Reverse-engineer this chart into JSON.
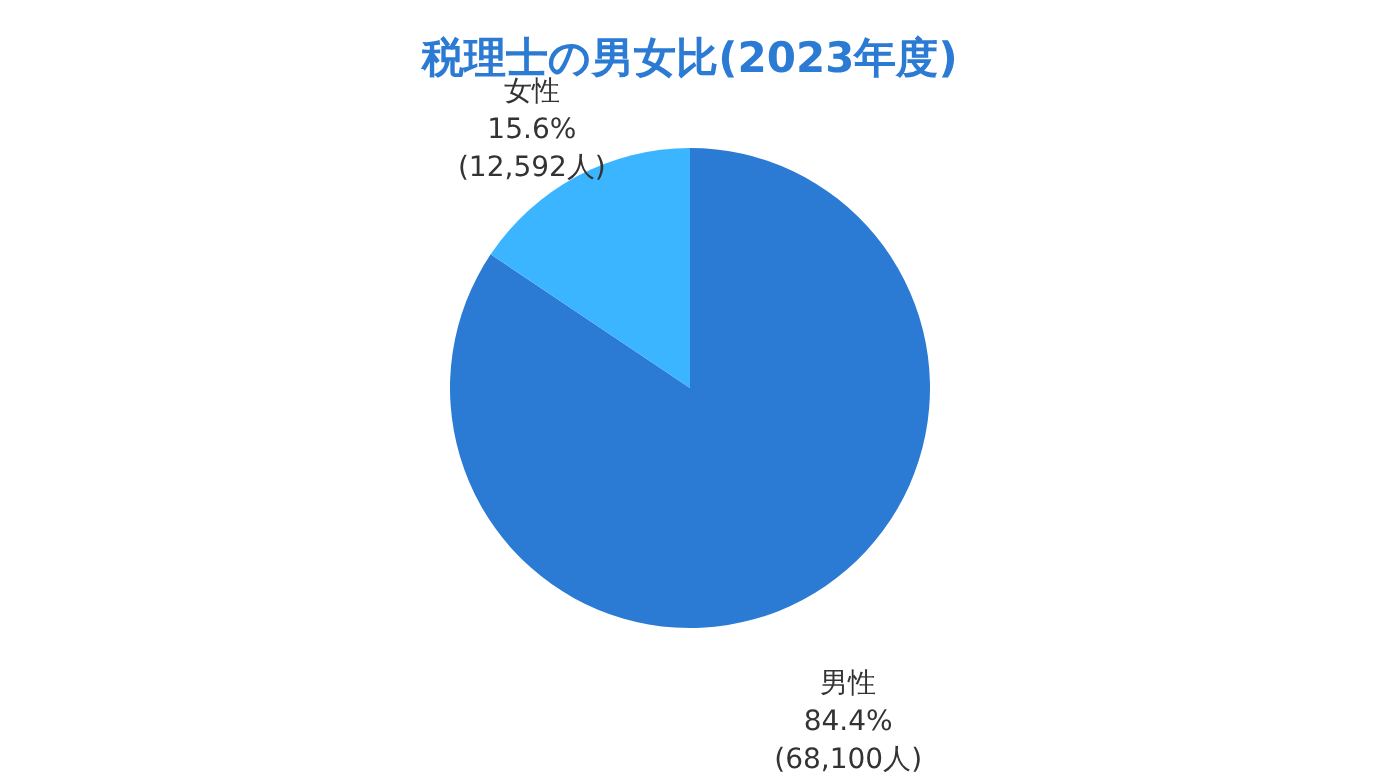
{
  "chart_data": {
    "type": "pie",
    "title": "税理士の男女比(2023年度)",
    "categories": [
      "男性",
      "女性"
    ],
    "values": [
      84.4,
      15.6
    ],
    "value_labels": [
      "84.4%",
      "15.6%"
    ],
    "colors": [
      "#2b7bd4",
      "#3bb5ff"
    ],
    "annotations": [
      "(68,100人)",
      "(12,592人)"
    ]
  }
}
